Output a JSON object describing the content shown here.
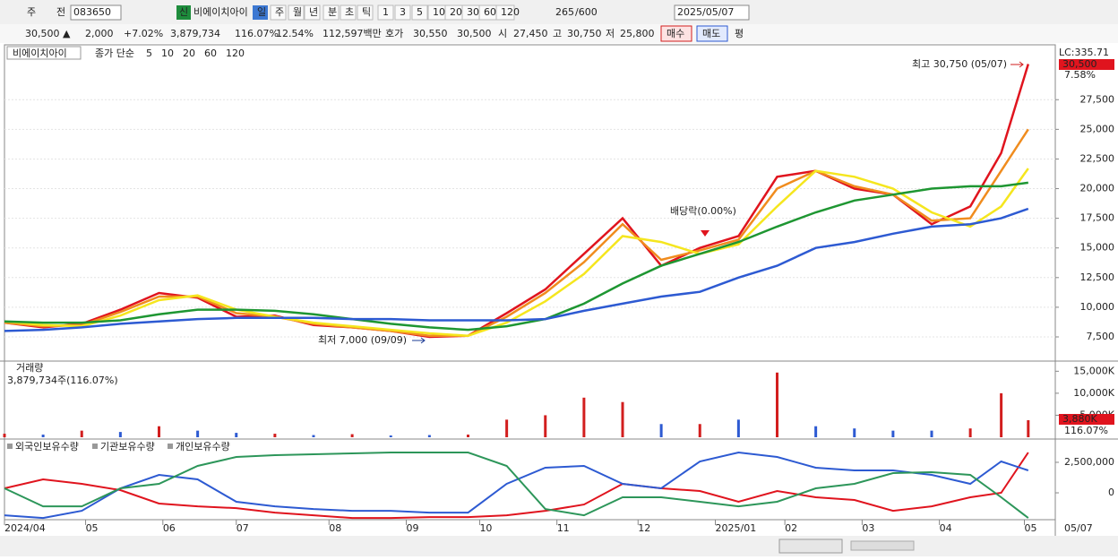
{
  "toolbar": [
    "주",
    "전",
    "083650",
    "신",
    "비에이치아이",
    "일",
    "주",
    "월",
    "년",
    "분",
    "초",
    "틱",
    "1",
    "3",
    "5",
    "10",
    "20",
    "30",
    "60",
    "120",
    "265",
    "/600",
    "2025/05/07"
  ],
  "info_bar": [
    "30,500 ▲",
    "2,000",
    "+7.02%",
    "3,879,734",
    "116.07%",
    "12.54%",
    "112,597백만",
    "호가",
    "30,550",
    "30,500",
    "시",
    "27,450",
    "고",
    "30,750",
    "저",
    "25,800",
    "매수",
    "매도",
    "평"
  ],
  "chart_data": [
    {
      "type": "line",
      "title": "비에이치아이",
      "legend_title": "종가 단순",
      "x": [
        0,
        10,
        20,
        30,
        40,
        50,
        60,
        70,
        80,
        90,
        100,
        110,
        120,
        130,
        140,
        150,
        160,
        170,
        180,
        190,
        200,
        210,
        220,
        230,
        240,
        250,
        258,
        265
      ],
      "xlim": [
        0,
        272
      ],
      "ylim": [
        5460,
        31750
      ],
      "yticks": [
        {
          "value": 7500,
          "label": "7,500"
        },
        {
          "value": 10000,
          "label": "10,000"
        },
        {
          "value": 12500,
          "label": "12,500"
        },
        {
          "value": 15000,
          "label": "15,000"
        },
        {
          "value": 17500,
          "label": "17,500"
        },
        {
          "value": 20000,
          "label": "20,000"
        },
        {
          "value": 22500,
          "label": "22,500"
        },
        {
          "value": 25000,
          "label": "25,000"
        },
        {
          "value": 27500,
          "label": "27,500"
        }
      ],
      "grid": true,
      "series": [
        {
          "name": "5",
          "color": "#e0141e",
          "values": [
            8700,
            8300,
            8600,
            9800,
            11200,
            10800,
            9200,
            9300,
            8500,
            8300,
            8000,
            7500,
            7600,
            9500,
            11500,
            14500,
            17500,
            13500,
            15000,
            16000,
            21000,
            21500,
            20000,
            19500,
            17000,
            18500,
            23000,
            30500
          ]
        },
        {
          "name": "10",
          "color": "#f08c1e",
          "values": [
            8700,
            8400,
            8500,
            9600,
            10900,
            10900,
            9500,
            9200,
            8600,
            8300,
            8000,
            7600,
            7600,
            9200,
            11200,
            13800,
            17000,
            14000,
            14800,
            15700,
            20000,
            21500,
            20200,
            19500,
            17300,
            17500,
            21500,
            25000
          ]
        },
        {
          "name": "20",
          "color": "#f5e61e",
          "values": [
            8800,
            8500,
            8400,
            9300,
            10600,
            11000,
            9800,
            9200,
            8700,
            8400,
            8100,
            7800,
            7600,
            8700,
            10500,
            12800,
            16000,
            15500,
            14500,
            15300,
            18500,
            21500,
            21000,
            20000,
            18000,
            16800,
            18500,
            21700
          ]
        },
        {
          "name": "60",
          "color": "#1e9632",
          "values": [
            8800,
            8700,
            8700,
            8900,
            9400,
            9800,
            9800,
            9700,
            9400,
            9000,
            8600,
            8300,
            8100,
            8400,
            9000,
            10300,
            12000,
            13500,
            14500,
            15500,
            16800,
            18000,
            19000,
            19500,
            20000,
            20200,
            20200,
            20500
          ]
        },
        {
          "name": "120",
          "color": "#2d5ad2",
          "values": [
            8000,
            8100,
            8300,
            8600,
            8800,
            9000,
            9100,
            9100,
            9100,
            9000,
            9000,
            8900,
            8900,
            8900,
            9000,
            9700,
            10300,
            10900,
            11300,
            12500,
            13500,
            15000,
            15500,
            16200,
            16800,
            17000,
            17500,
            18300
          ]
        }
      ],
      "annotations": [
        "최고 30,750 (05/07)",
        "최저 7,000 (09/09)",
        "배당락(0.00%)"
      ],
      "lc_label": "LC:335.71",
      "last_label": "30,500",
      "pct_label": "7.58%"
    },
    {
      "type": "bar",
      "title": "거래량",
      "subtitle": "3,879,734주(116.07%)",
      "x": [
        0,
        10,
        20,
        30,
        40,
        50,
        60,
        70,
        80,
        90,
        100,
        110,
        120,
        130,
        140,
        150,
        160,
        170,
        180,
        190,
        200,
        210,
        220,
        230,
        240,
        250,
        258,
        265
      ],
      "xlim": [
        0,
        272
      ],
      "ylim": [
        0,
        16900
      ],
      "yticks": [
        {
          "value": 5000,
          "label": "5,000K"
        },
        {
          "value": 10000,
          "label": "10,000K"
        },
        {
          "value": 15000,
          "label": "15,000K"
        }
      ],
      "values": [
        800,
        600,
        1500,
        1200,
        2500,
        1500,
        1000,
        800,
        500,
        700,
        400,
        500,
        600,
        4000,
        5000,
        9000,
        8000,
        3000,
        3000,
        4000,
        14700,
        2500,
        2000,
        1500,
        1500,
        2000,
        10000,
        3880
      ],
      "colors": [
        "#d21e1e",
        "#2d5ad2",
        "#d21e1e",
        "#2d5ad2",
        "#d21e1e",
        "#2d5ad2",
        "#2d5ad2",
        "#d21e1e",
        "#2d5ad2",
        "#d21e1e",
        "#2d5ad2",
        "#2d5ad2",
        "#d21e1e",
        "#d21e1e",
        "#d21e1e",
        "#d21e1e",
        "#d21e1e",
        "#2d5ad2",
        "#d21e1e",
        "#2d5ad2",
        "#d21e1e",
        "#2d5ad2",
        "#2d5ad2",
        "#2d5ad2",
        "#2d5ad2",
        "#d21e1e",
        "#d21e1e",
        "#d21e1e"
      ],
      "last_label": "3,880K",
      "pct_label": "116.07%"
    },
    {
      "type": "line",
      "x": [
        0,
        10,
        20,
        30,
        40,
        50,
        60,
        70,
        80,
        90,
        100,
        110,
        120,
        130,
        140,
        150,
        160,
        170,
        180,
        190,
        200,
        210,
        220,
        230,
        240,
        250,
        258,
        265
      ],
      "xlim": [
        0,
        272
      ],
      "ylim": [
        -2200000,
        4260000
      ],
      "yticks": [
        0,
        {
          "value": 2500000,
          "label": "2,500,000"
        }
      ],
      "xticks": [
        {
          "value": 0,
          "label": "2024/04"
        },
        {
          "value": 21,
          "label": "05"
        },
        {
          "value": 41,
          "label": "06"
        },
        {
          "value": 60,
          "label": "07"
        },
        {
          "value": 84,
          "label": "08"
        },
        {
          "value": 104,
          "label": "09"
        },
        {
          "value": 123,
          "label": "10"
        },
        {
          "value": 143,
          "label": "11"
        },
        {
          "value": 164,
          "label": "12"
        },
        {
          "value": 184,
          "label": "2025/01"
        },
        {
          "value": 202,
          "label": "02"
        },
        {
          "value": 222,
          "label": "03"
        },
        {
          "value": 242,
          "label": "04"
        },
        {
          "value": 264,
          "label": "05"
        }
      ],
      "x_end_label": "05/07",
      "series": [
        {
          "name": "외국인보유수량",
          "color": "#e0141e",
          "values": [
            368000,
            1103000,
            735000,
            221000,
            -882000,
            -1103000,
            -1250000,
            -1618000,
            -1838000,
            -2059000,
            -2059000,
            -1985000,
            -1985000,
            -1838000,
            -1471000,
            -956000,
            735000,
            368000,
            147000,
            -735000,
            147000,
            -368000,
            -588000,
            -1471000,
            -1103000,
            -368000,
            0,
            3309000
          ]
        },
        {
          "name": "기관보유수량",
          "color": "#2d5ad2",
          "values": [
            -1838000,
            -2059000,
            -1471000,
            368000,
            1471000,
            1103000,
            -735000,
            -1103000,
            -1324000,
            -1471000,
            -1471000,
            -1618000,
            -1618000,
            735000,
            2059000,
            2206000,
            735000,
            368000,
            2574000,
            3309000,
            2941000,
            2059000,
            1838000,
            1838000,
            1471000,
            735000,
            2574000,
            1838000
          ]
        },
        {
          "name": "개인보유수량",
          "color": "#2d965a",
          "values": [
            368000,
            -1103000,
            -1103000,
            368000,
            735000,
            2206000,
            2941000,
            3088000,
            3162000,
            3235000,
            3309000,
            3309000,
            3309000,
            2206000,
            -1324000,
            -1838000,
            -368000,
            -368000,
            -735000,
            -1103000,
            -735000,
            368000,
            735000,
            1618000,
            1691000,
            1471000,
            -368000,
            -2059000
          ]
        }
      ]
    }
  ]
}
